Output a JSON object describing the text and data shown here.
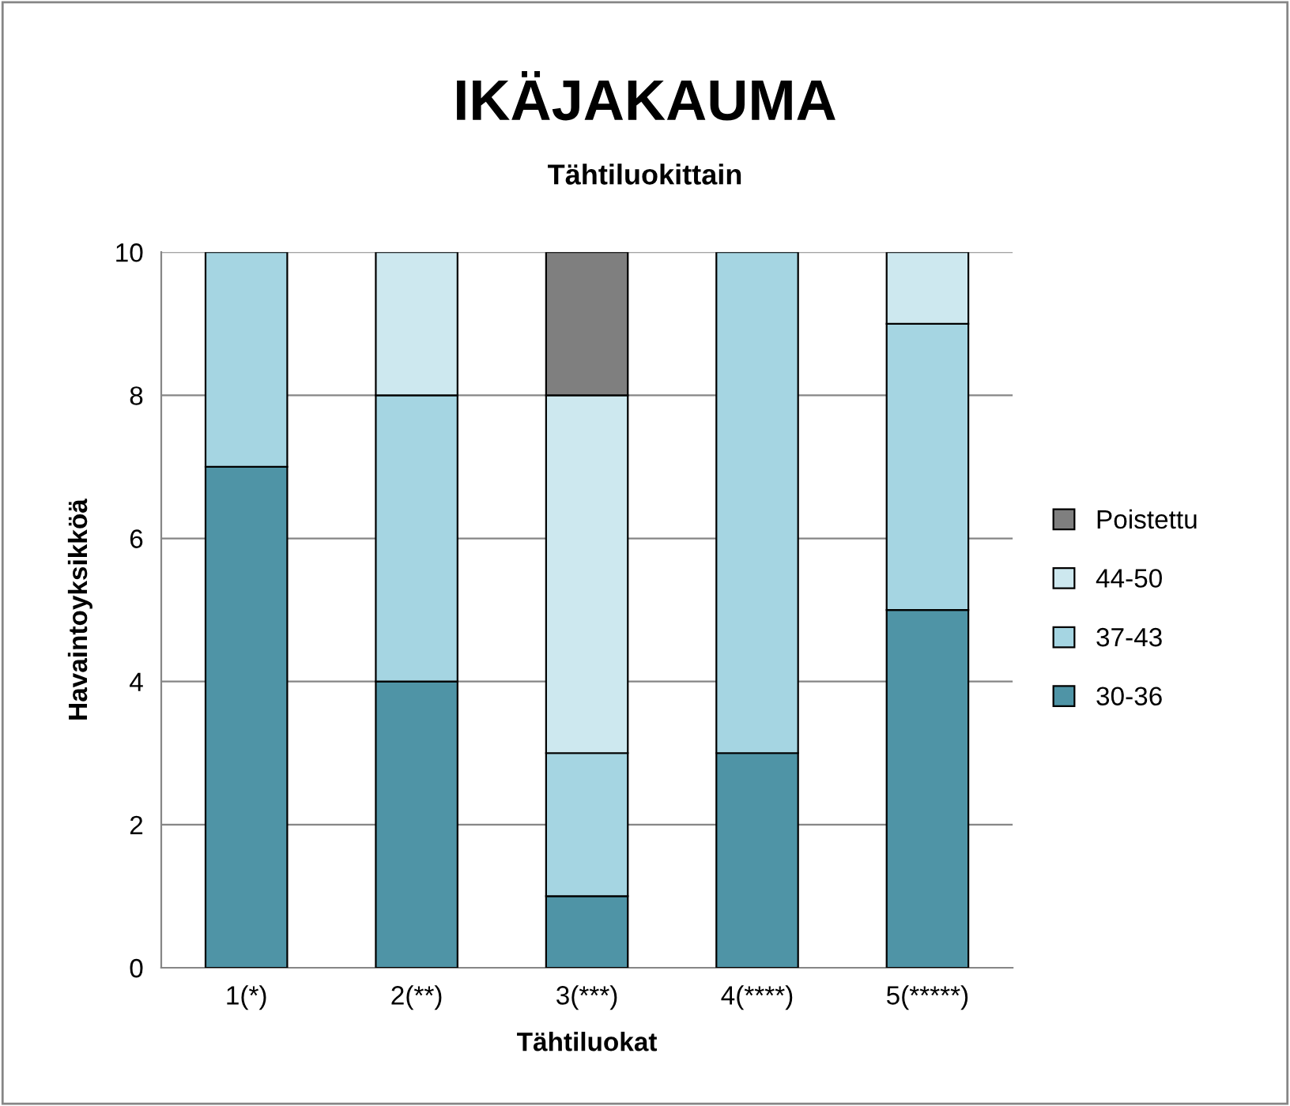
{
  "chart_data": {
    "type": "bar",
    "title": "IKÄJAKAUMA",
    "subtitle": "Tähtiluokittain",
    "xlabel": "Tähtiluokat",
    "ylabel": "Havaintoyksikköä",
    "categories": [
      "1(*)",
      "2(**)",
      "3(***)",
      "4(****)",
      "5(*****)"
    ],
    "stacked": true,
    "series": [
      {
        "name": "30-36",
        "color": "#4f94a6",
        "values": [
          7,
          4,
          1,
          3,
          5
        ]
      },
      {
        "name": "37-43",
        "color": "#a5d5e2",
        "values": [
          3,
          4,
          2,
          7,
          4
        ]
      },
      {
        "name": "44-50",
        "color": "#cde8ef",
        "values": [
          null,
          2,
          5,
          null,
          1
        ]
      },
      {
        "name": "Poistettu",
        "color": "#7f7f7f",
        "values": [
          null,
          null,
          2,
          null,
          null
        ]
      }
    ],
    "ylim": [
      0,
      10
    ],
    "yticks": [
      0,
      2,
      4,
      6,
      8,
      10
    ],
    "grid": "y",
    "legend": "right"
  }
}
